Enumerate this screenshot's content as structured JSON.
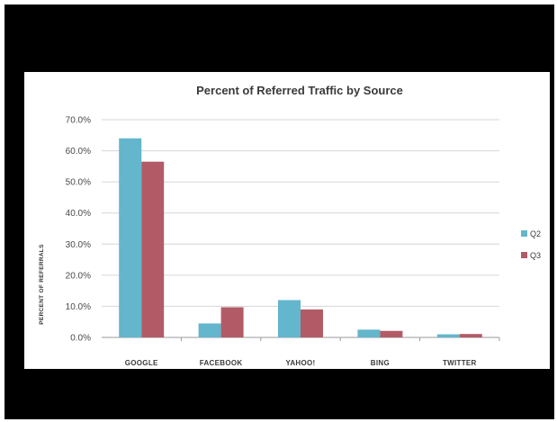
{
  "chart_data": {
    "type": "bar",
    "title": "Percent of Referred Traffic by Source",
    "xlabel": "",
    "ylabel": "PERCENT OF REFERRALS",
    "categories": [
      "GOOGLE",
      "FACEBOOK",
      "YAHOO!",
      "BING",
      "TWITTER"
    ],
    "series": [
      {
        "name": "Q2",
        "color": "#63b6cc",
        "values": [
          64.0,
          4.5,
          12.0,
          2.5,
          1.0
        ]
      },
      {
        "name": "Q3",
        "color": "#b25b66",
        "values": [
          56.5,
          9.7,
          9.0,
          2.1,
          1.1
        ]
      }
    ],
    "ylim": [
      0,
      70
    ],
    "yticks": [
      "0.0%",
      "10.0%",
      "20.0%",
      "30.0%",
      "40.0%",
      "50.0%",
      "60.0%",
      "70.0%"
    ],
    "grid": true,
    "legend": "right"
  }
}
